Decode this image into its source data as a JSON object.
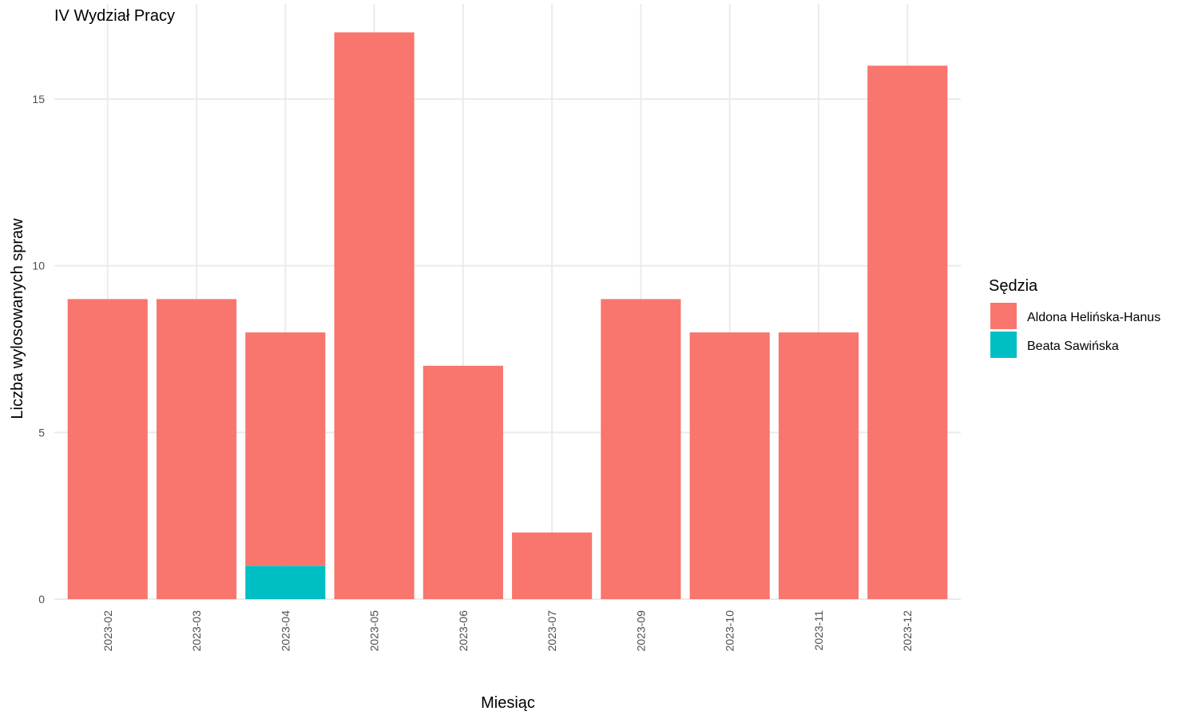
{
  "chart_data": {
    "type": "bar",
    "stacked": true,
    "title": "IV Wydział Pracy",
    "xlabel": "Miesiąc",
    "ylabel": "Liczba wylosowanych spraw",
    "categories": [
      "2023-02",
      "2023-03",
      "2023-04",
      "2023-05",
      "2023-06",
      "2023-07",
      "2023-09",
      "2023-10",
      "2023-11",
      "2023-12"
    ],
    "series": [
      {
        "name": "Beata Sawińska",
        "color": "#00BFC4",
        "values": [
          0,
          0,
          1,
          0,
          0,
          0,
          0,
          0,
          0,
          0
        ]
      },
      {
        "name": "Aldona Helińska-Hanus",
        "color": "#F8766D",
        "values": [
          9,
          9,
          7,
          17,
          7,
          2,
          9,
          8,
          8,
          16
        ]
      }
    ],
    "ylim": [
      0,
      17.85
    ],
    "yticks": [
      0,
      5,
      10,
      15
    ],
    "grid": true,
    "legend": {
      "title": "Sędzia",
      "placement": "right",
      "entries": [
        {
          "label": "Aldona Helińska-Hanus",
          "color": "#F8766D"
        },
        {
          "label": "Beata Sawińska",
          "color": "#00BFC4"
        }
      ]
    }
  }
}
